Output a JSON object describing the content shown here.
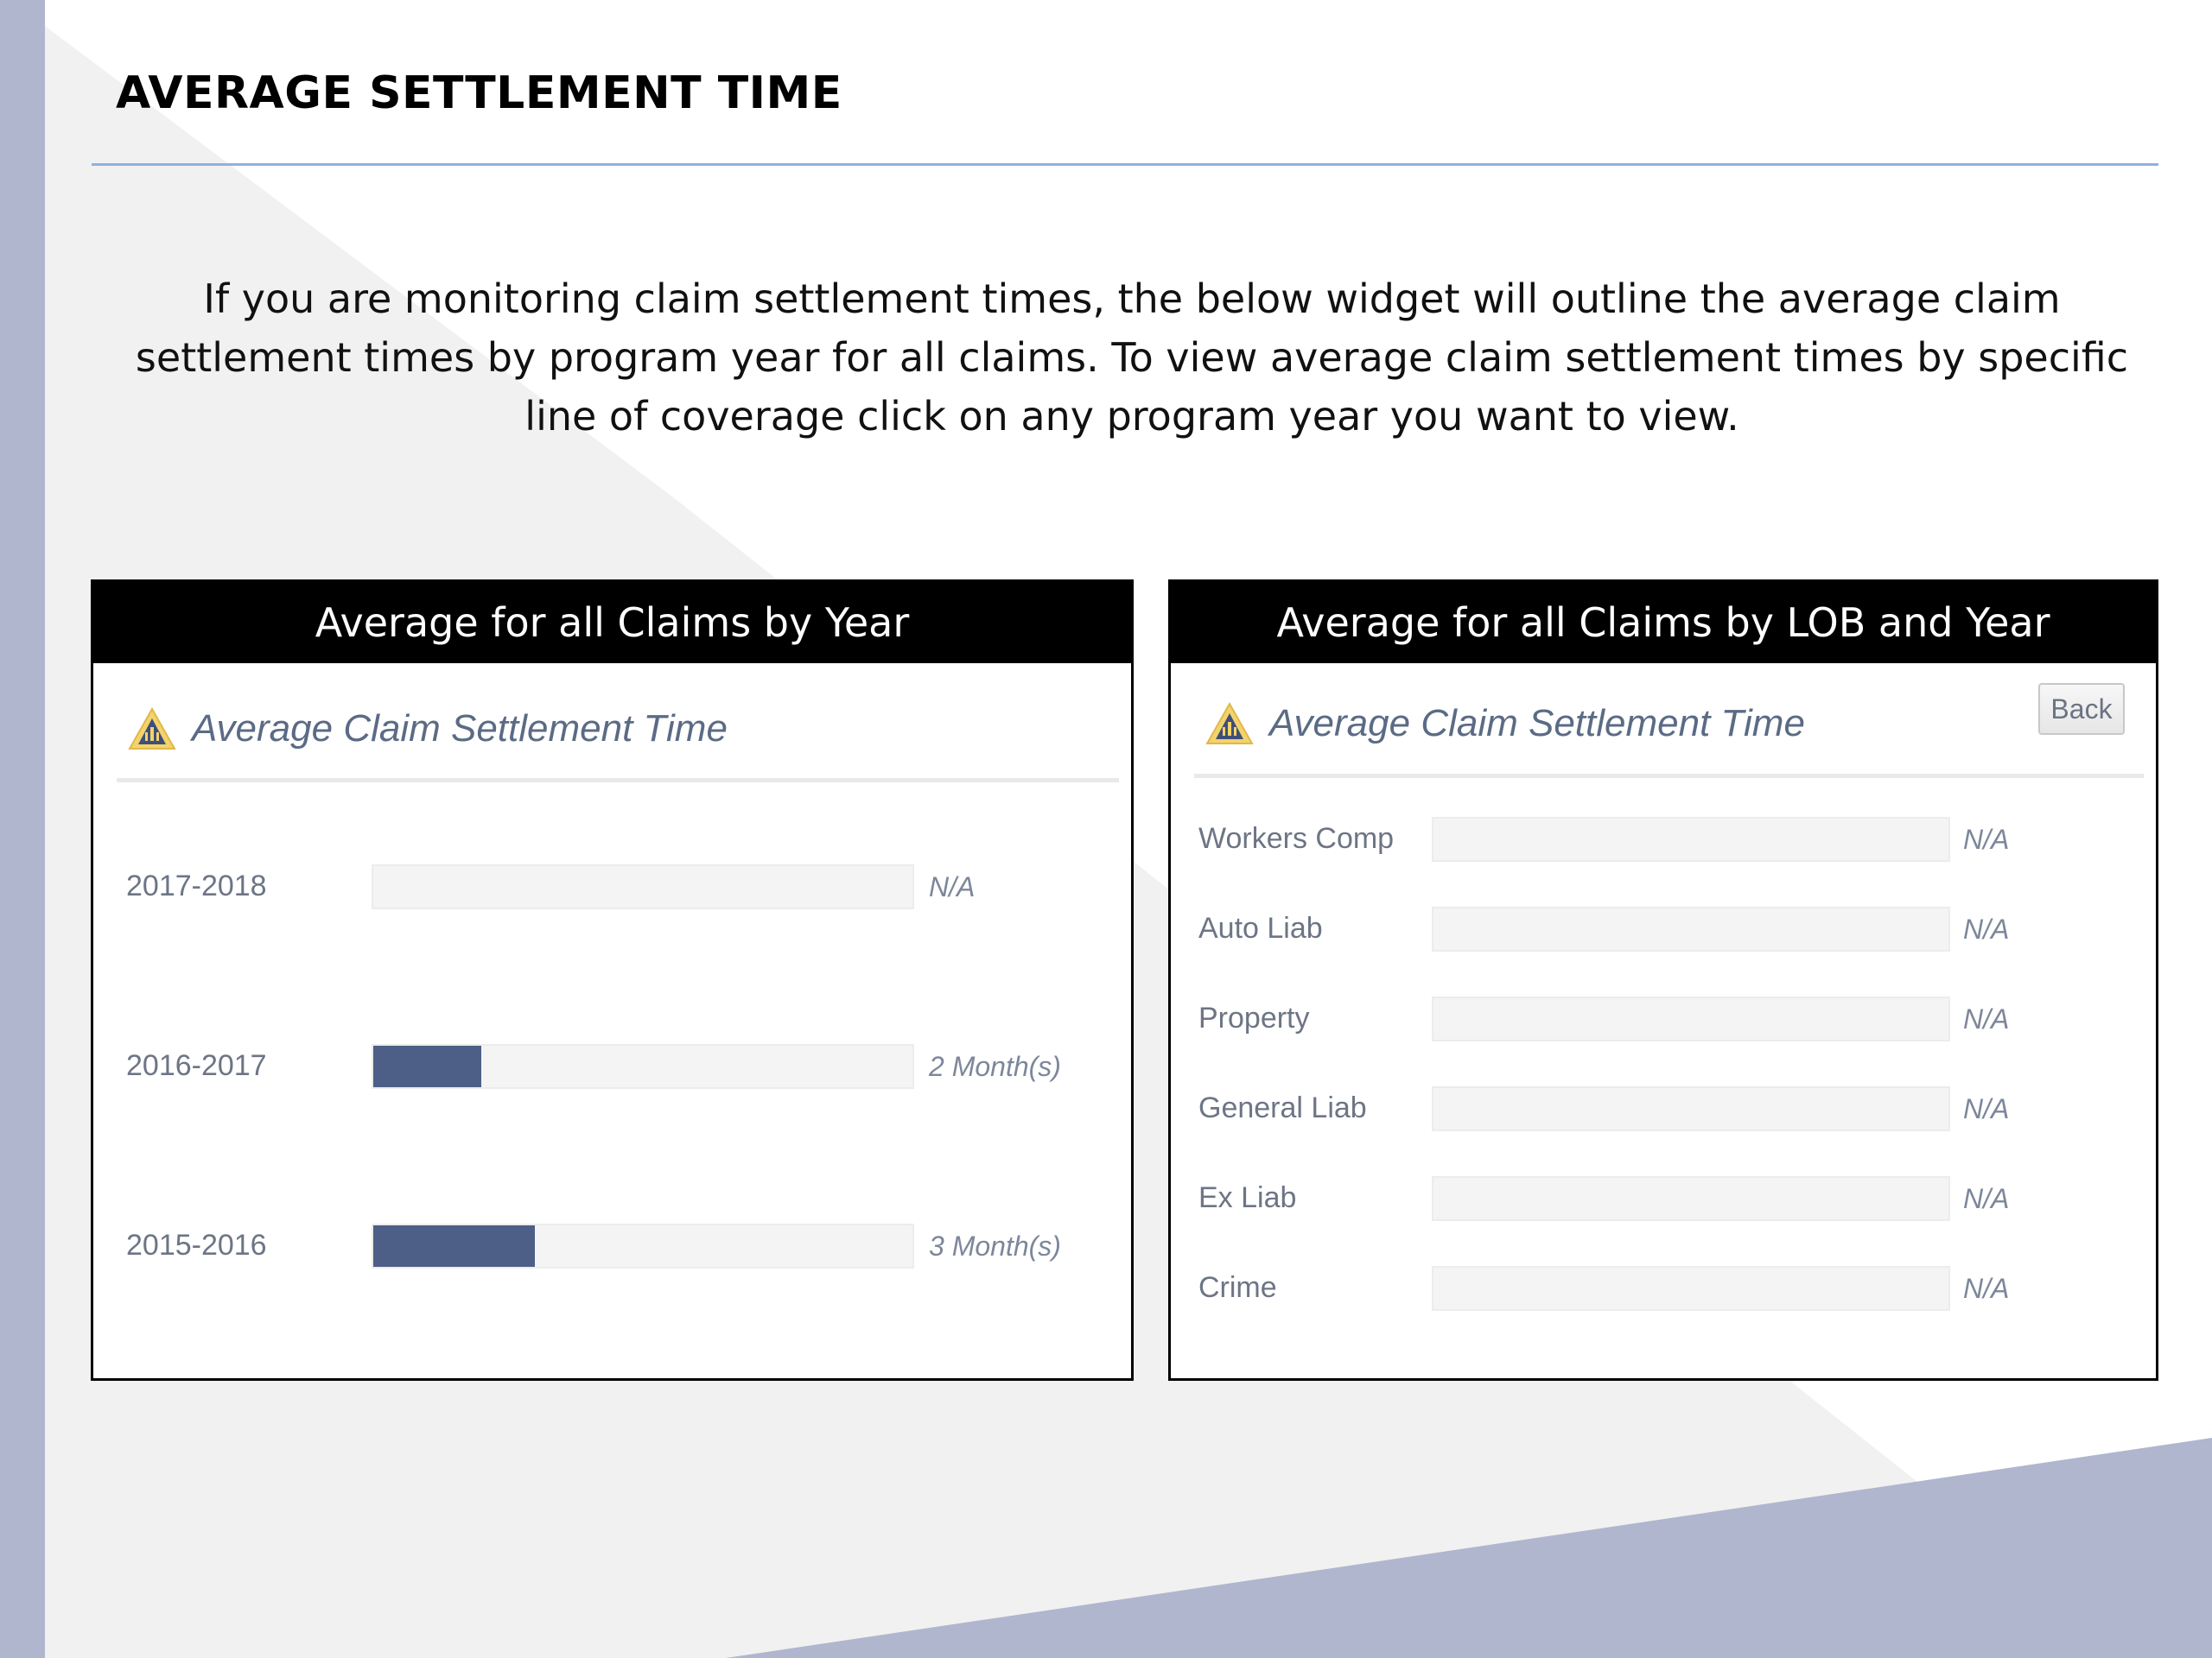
{
  "page": {
    "title": "AVERAGE SETTLEMENT TIME",
    "intro": "If you are monitoring claim settlement times, the below widget will outline the average claim settlement times by program year for all claims. To view average claim settlement times by specific line of coverage click on any program year you want to view."
  },
  "left_panel": {
    "header": "Average for all Claims by Year",
    "widget_title": "Average Claim Settlement Time",
    "icon": "warning-triangle-icon",
    "rows": [
      {
        "label": "2017-2018",
        "value": "N/A",
        "fill": 0.0
      },
      {
        "label": "2016-2017",
        "value": "2 Month(s)",
        "fill": 0.2
      },
      {
        "label": "2015-2016",
        "value": "3 Month(s)",
        "fill": 0.3
      }
    ]
  },
  "right_panel": {
    "header": "Average for all Claims by LOB and Year",
    "widget_title": "Average Claim Settlement Time",
    "icon": "warning-triangle-icon",
    "back_label": "Back",
    "rows": [
      {
        "label": "Workers Comp",
        "value": "N/A",
        "fill": 0.0
      },
      {
        "label": "Auto Liab",
        "value": "N/A",
        "fill": 0.0
      },
      {
        "label": "Property",
        "value": "N/A",
        "fill": 0.0
      },
      {
        "label": "General Liab",
        "value": "N/A",
        "fill": 0.0
      },
      {
        "label": "Ex Liab",
        "value": "N/A",
        "fill": 0.0
      },
      {
        "label": "Crime",
        "value": "N/A",
        "fill": 0.0
      }
    ]
  },
  "colors": {
    "bar_fill": "#4d5f86",
    "accent_rule": "#8fb1dc",
    "side_stripe": "#b0b6ce"
  }
}
